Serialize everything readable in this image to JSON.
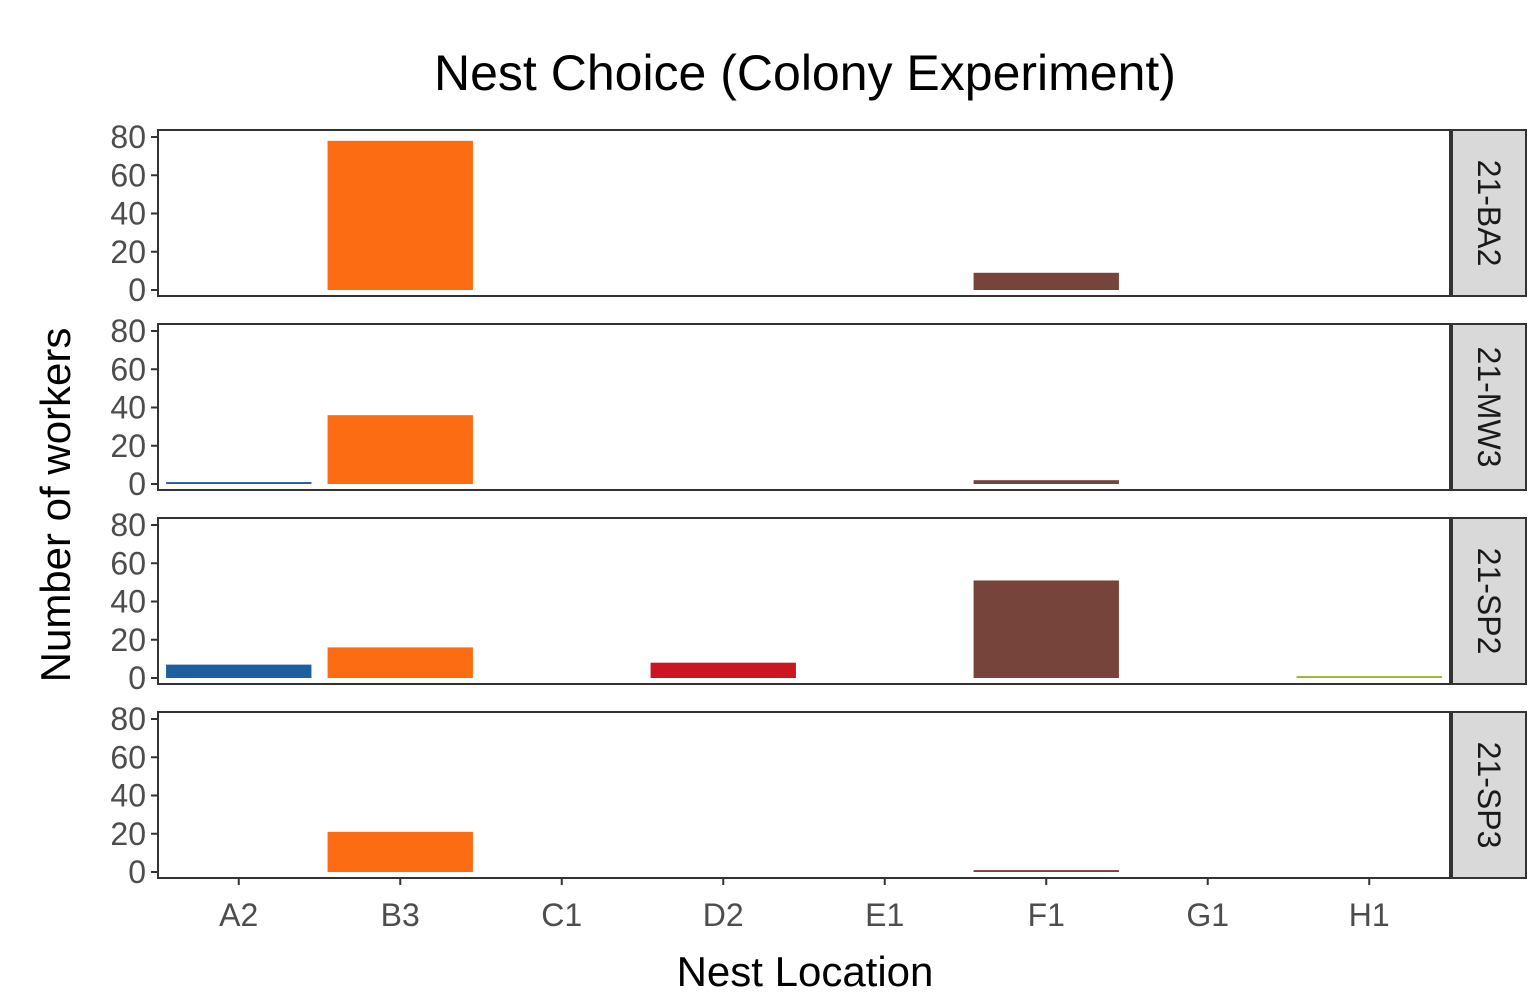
{
  "chart_data": {
    "type": "bar",
    "title": "Nest Choice (Colony Experiment)",
    "xlabel": "Nest Location",
    "ylabel": "Number of workers",
    "categories": [
      "A2",
      "B3",
      "C1",
      "D2",
      "E1",
      "F1",
      "G1",
      "H1"
    ],
    "ylim": [
      0,
      80
    ],
    "yticks": [
      0,
      20,
      40,
      60,
      80
    ],
    "grid": false,
    "legend": "none",
    "category_colors": {
      "A2": "#1f5fa0",
      "B3": "#fc6c13",
      "C1": "#aaaaaa",
      "D2": "#cb1520",
      "E1": "#aaaaaa",
      "F1": "#77443b",
      "G1": "#aaaaaa",
      "H1": "#a1b424"
    },
    "facets": [
      {
        "label": "21-BA2",
        "values": [
          0,
          78,
          0,
          0,
          0,
          9,
          0,
          0
        ]
      },
      {
        "label": "21-MW3",
        "values": [
          1,
          36,
          0,
          0,
          0,
          2,
          0,
          0
        ]
      },
      {
        "label": "21-SP2",
        "values": [
          7,
          16,
          0,
          8,
          0,
          51,
          0,
          1
        ]
      },
      {
        "label": "21-SP3",
        "values": [
          0,
          21,
          0,
          0,
          0,
          1,
          0,
          0
        ]
      }
    ]
  }
}
